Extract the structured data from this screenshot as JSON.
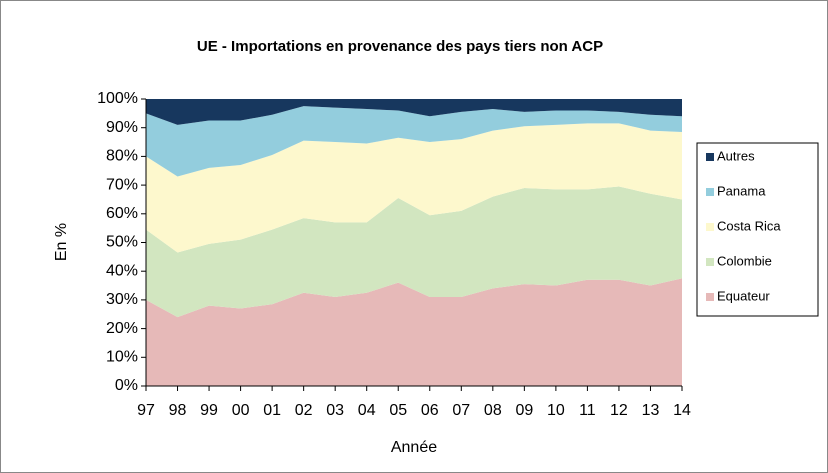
{
  "chart_data": {
    "type": "stacked_area",
    "title": "UE - Importations en provenance des pays tiers non ACP",
    "x_label": "Année",
    "y_label": "En %",
    "categories": [
      "97",
      "98",
      "99",
      "00",
      "01",
      "02",
      "03",
      "04",
      "05",
      "06",
      "07",
      "08",
      "09",
      "10",
      "11",
      "12",
      "13",
      "14"
    ],
    "series": [
      {
        "name": "Equateur",
        "color": "#e6b9b8",
        "values": [
          30,
          24,
          28,
          27,
          28.5,
          32.5,
          31,
          32.5,
          36,
          31,
          31,
          34,
          35.5,
          35,
          37,
          37,
          35,
          37.5
        ]
      },
      {
        "name": "Colombie",
        "color": "#d2e6c0",
        "values": [
          24.5,
          22.5,
          21.5,
          24,
          26,
          26,
          26,
          24.5,
          29.5,
          28.5,
          30,
          32,
          33.5,
          33.5,
          31.5,
          32.5,
          32,
          27.5
        ]
      },
      {
        "name": "Costa Rica",
        "color": "#fdf8cd",
        "values": [
          25.5,
          26.5,
          26.5,
          26,
          26,
          27,
          28,
          27.5,
          21,
          25.5,
          25,
          23,
          21.5,
          22.5,
          23,
          22,
          22,
          23.5
        ]
      },
      {
        "name": "Panama",
        "color": "#93cddd",
        "values": [
          15,
          18,
          16.5,
          15.5,
          14,
          12,
          12,
          12,
          9.5,
          9,
          9.5,
          7.5,
          5,
          5,
          4.5,
          4,
          5.5,
          5.5
        ]
      },
      {
        "name": "Autres",
        "color": "#17375e",
        "values": [
          5,
          9,
          7.5,
          7.5,
          5.5,
          2.5,
          3,
          3.5,
          4,
          6,
          4.5,
          3.5,
          4.5,
          4,
          4,
          4.5,
          5.5,
          6
        ]
      }
    ],
    "ylim": [
      0,
      100
    ],
    "yticks": [
      {
        "value": 0,
        "label": "0%"
      },
      {
        "value": 10,
        "label": "10%"
      },
      {
        "value": 20,
        "label": "20%"
      },
      {
        "value": 30,
        "label": "30%"
      },
      {
        "value": 40,
        "label": "40%"
      },
      {
        "value": 50,
        "label": "50%"
      },
      {
        "value": 60,
        "label": "60%"
      },
      {
        "value": 70,
        "label": "70%"
      },
      {
        "value": 80,
        "label": "80%"
      },
      {
        "value": 90,
        "label": "90%"
      },
      {
        "value": 100,
        "label": "100%"
      }
    ],
    "legend": "right"
  }
}
